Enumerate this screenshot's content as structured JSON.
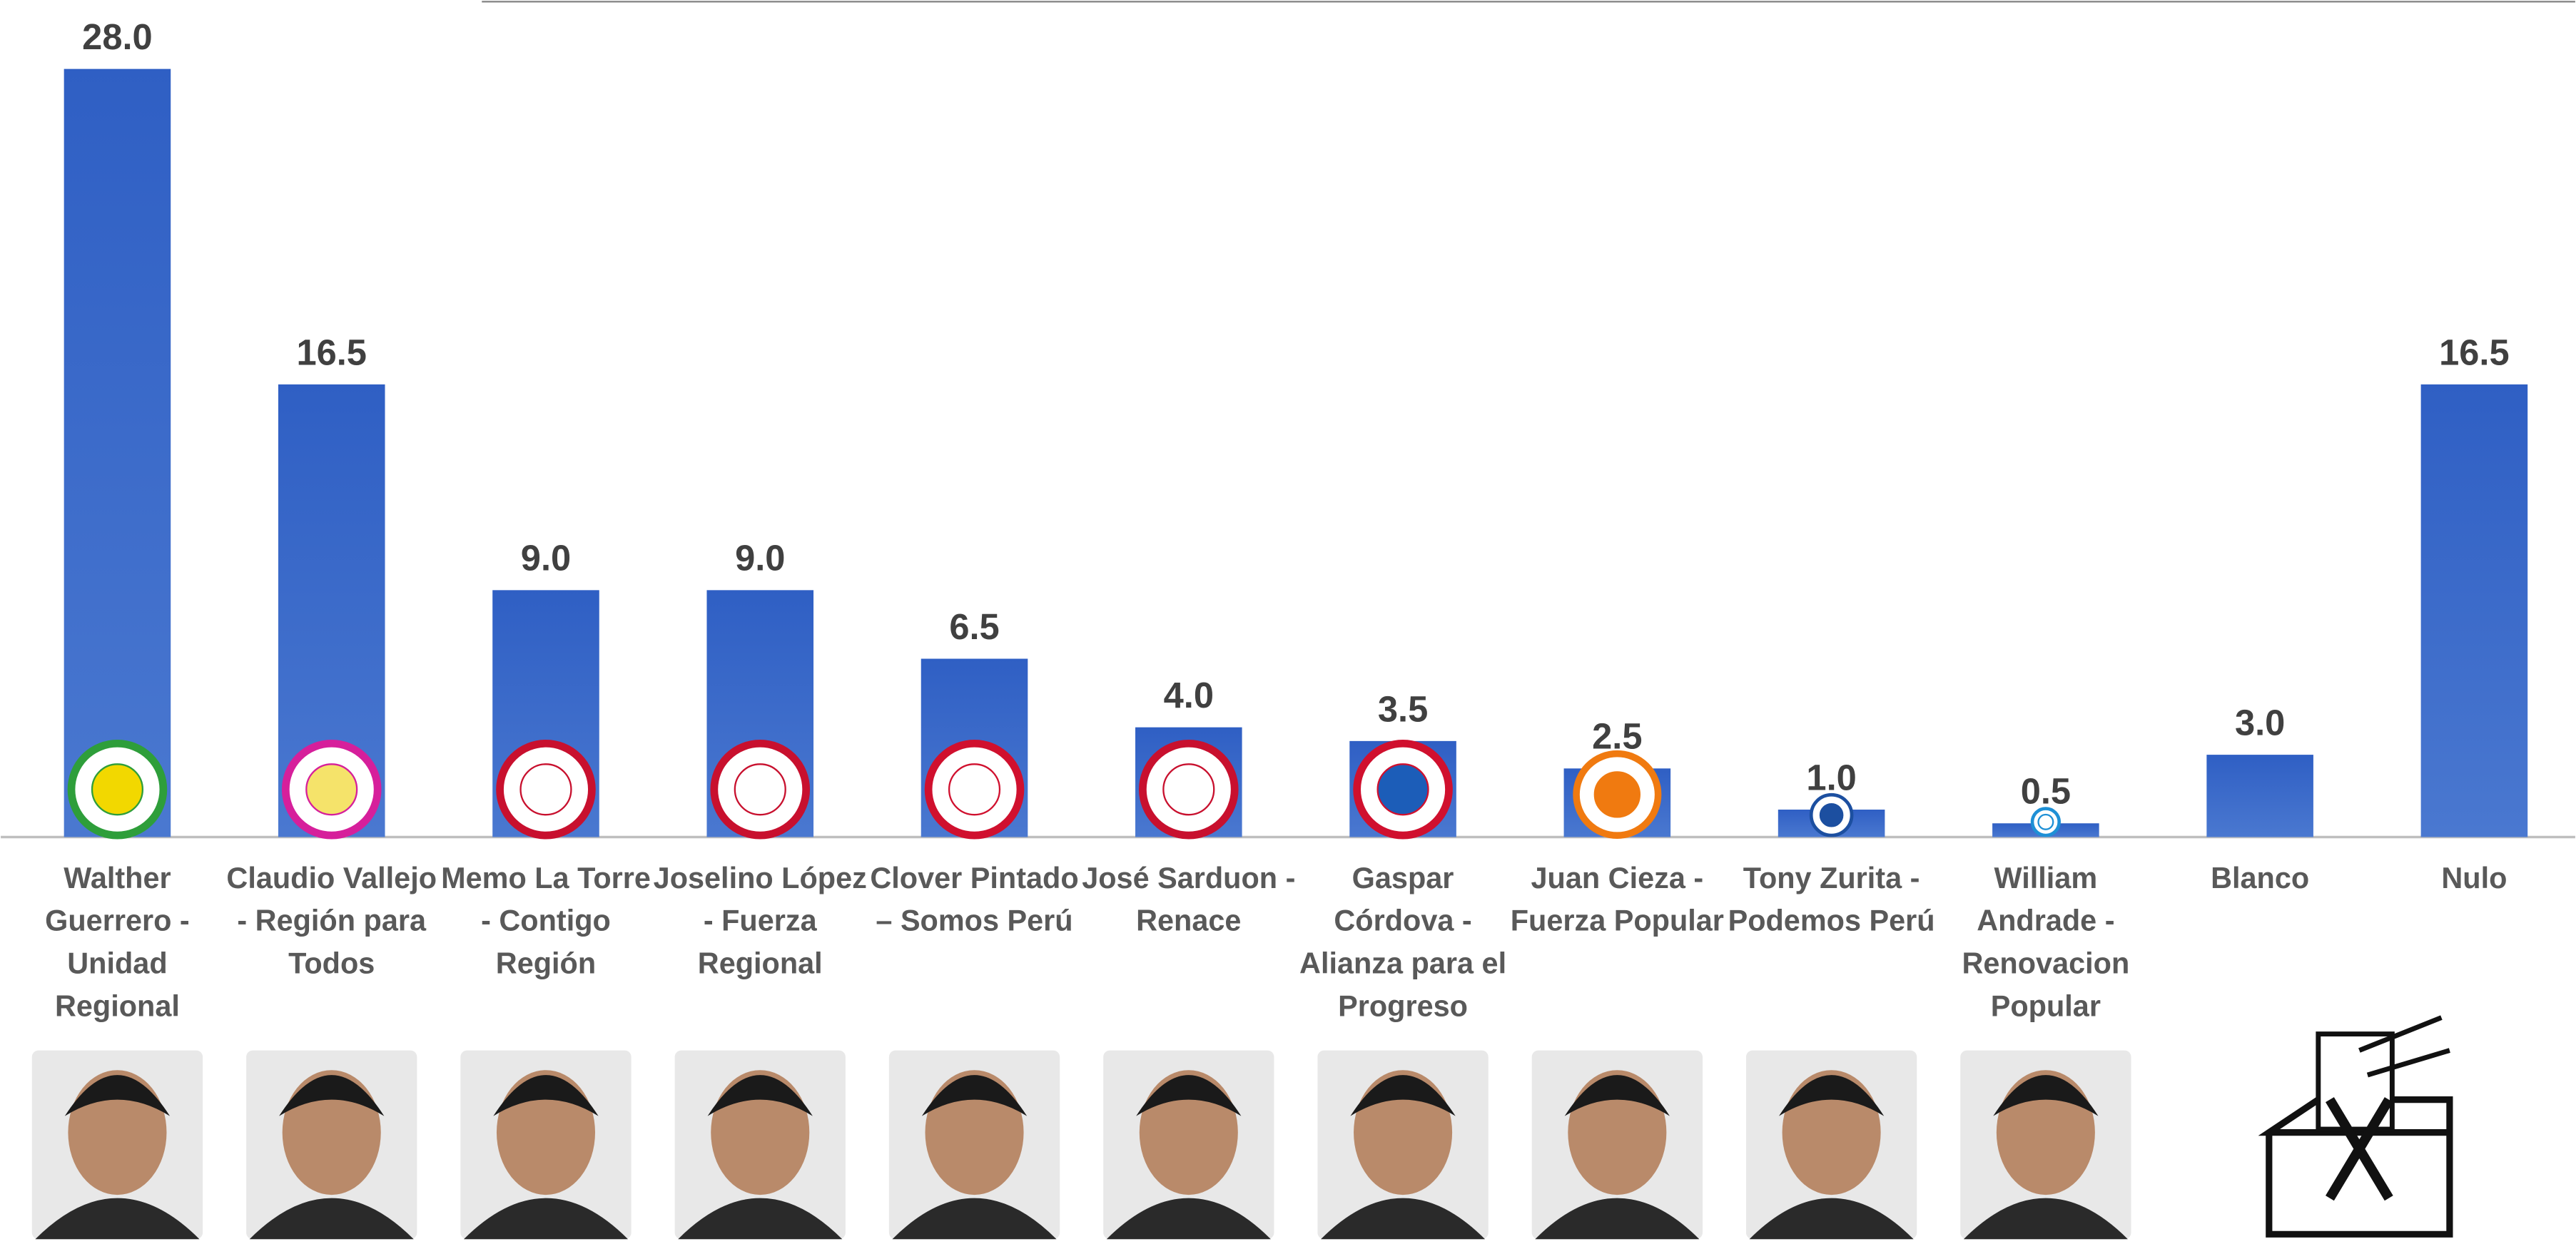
{
  "chart_data": {
    "type": "bar",
    "categories": [
      "Walther Guerrero - Unidad Regional",
      "Claudio Vallejo - Región para Todos",
      "Memo La Torre - Contigo Región",
      "Joselino López - Fuerza Regional",
      "Clover Pintado – Somos Perú",
      "José Sarduon - Renace",
      "Gaspar Córdova - Alianza para el Progreso",
      "Juan Cieza - Fuerza Popular",
      "Tony Zurita - Podemos Perú",
      "William Andrade - Renovacion Popular",
      "Blanco",
      "Nulo"
    ],
    "values": [
      28,
      16.5,
      9,
      9,
      6.5,
      4,
      3.5,
      2.5,
      1,
      0.5,
      3,
      16.5
    ],
    "value_labels": [
      "28.0",
      "16.5",
      "9.0",
      "9.0",
      "6.5",
      "4.0",
      "3.5",
      "2.5",
      "1.0",
      "0.5",
      "3.0",
      "16.5"
    ],
    "color": "#4472c4"
  }
}
